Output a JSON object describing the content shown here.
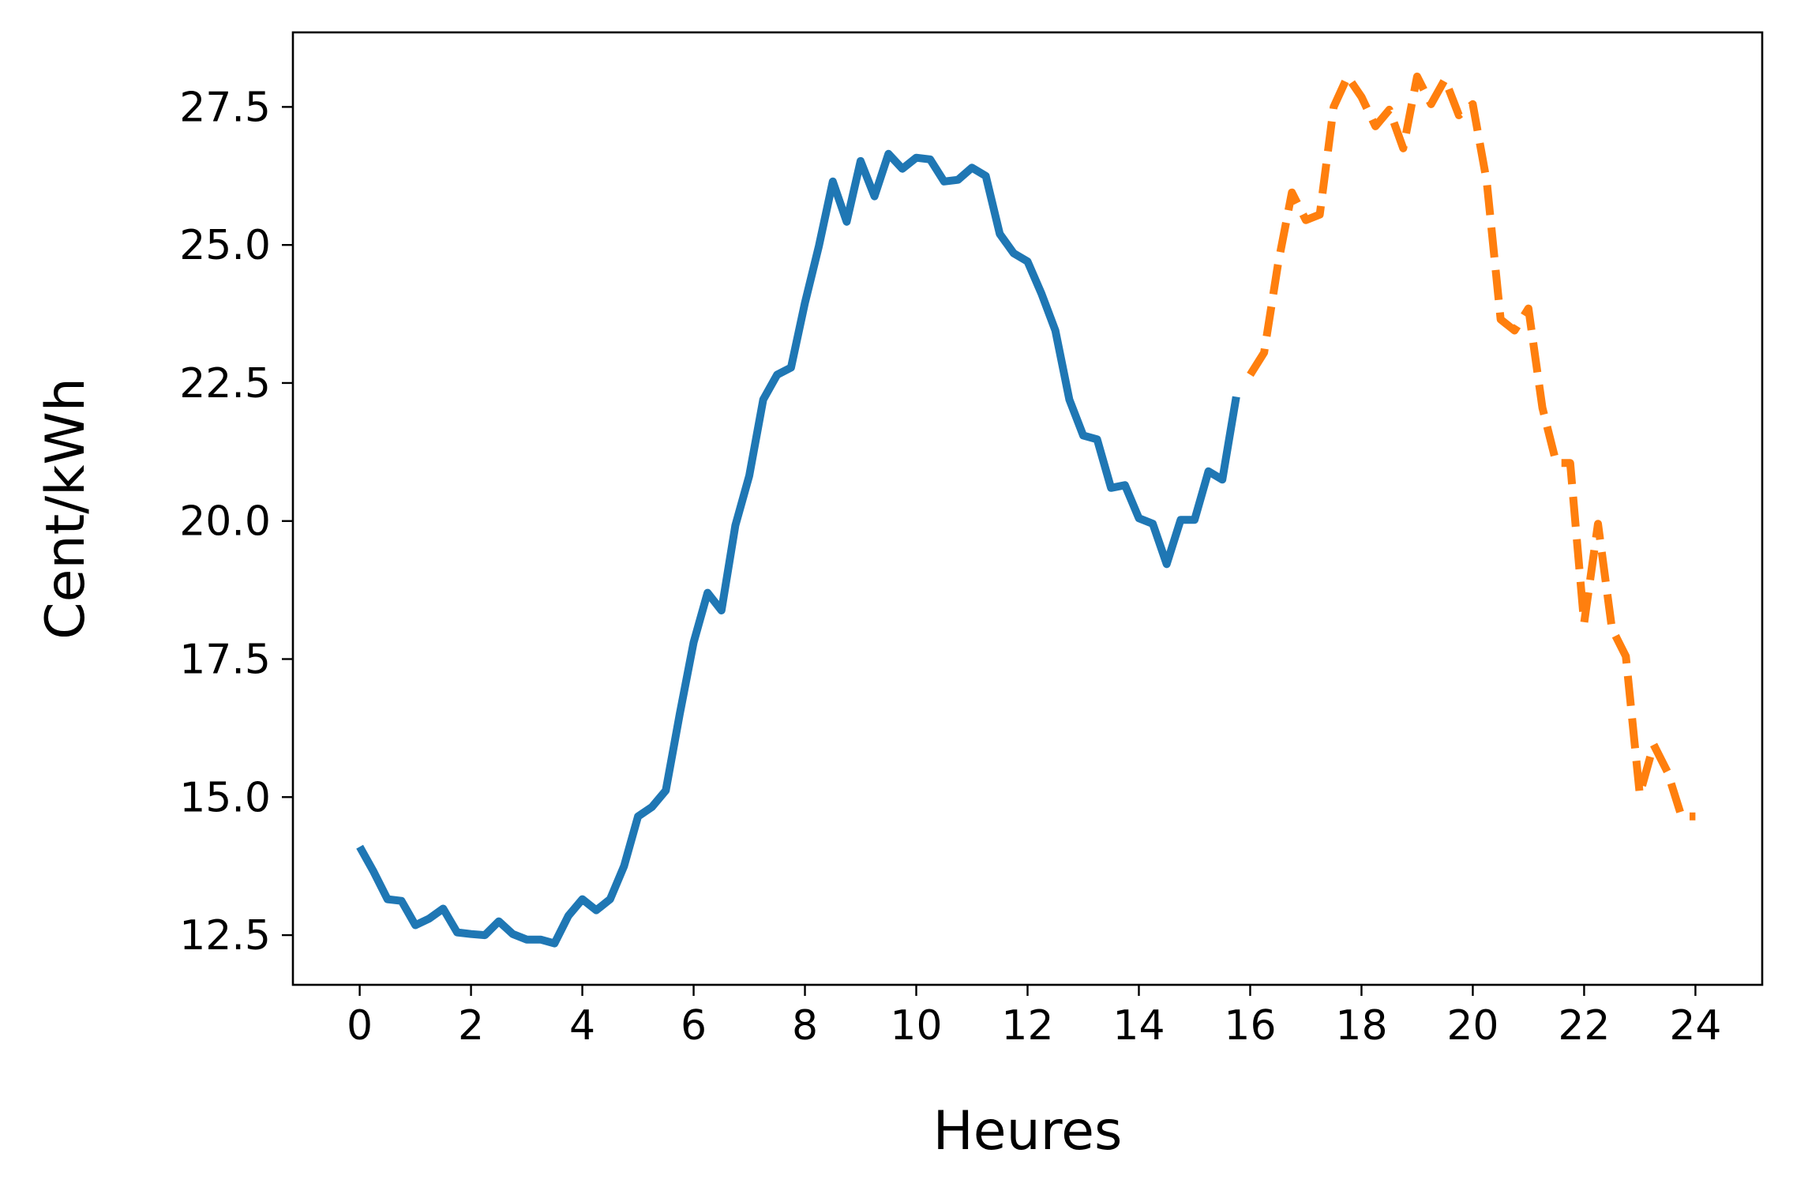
{
  "chart_data": {
    "type": "line",
    "title": "",
    "xlabel": "Heures",
    "ylabel": "Cent/kWh",
    "xlim": [
      -1.2,
      25.2
    ],
    "ylim": [
      11.6,
      28.85
    ],
    "xticks": [
      0,
      2,
      4,
      6,
      8,
      10,
      12,
      14,
      16,
      18,
      20,
      22,
      24
    ],
    "xtick_labels": [
      "0",
      "2",
      "4",
      "6",
      "8",
      "10",
      "12",
      "14",
      "16",
      "18",
      "20",
      "22",
      "24"
    ],
    "yticks": [
      12.5,
      15.0,
      17.5,
      20.0,
      22.5,
      25.0,
      27.5
    ],
    "ytick_labels": [
      "12.5",
      "15.0",
      "17.5",
      "20.0",
      "22.5",
      "25.0",
      "27.5"
    ],
    "grid": false,
    "legend": false,
    "series": [
      {
        "style": "solid",
        "color": "#1f77b4",
        "x": [
          0,
          0.25,
          0.5,
          0.75,
          1.0,
          1.25,
          1.5,
          1.75,
          2.0,
          2.25,
          2.5,
          2.75,
          3.0,
          3.25,
          3.5,
          3.75,
          4.0,
          4.25,
          4.5,
          4.75,
          5.0,
          5.25,
          5.5,
          5.75,
          6.0,
          6.25,
          6.5,
          6.75,
          7.0,
          7.25,
          7.5,
          7.75,
          8.0,
          8.25,
          8.5,
          8.75,
          9.0,
          9.25,
          9.5,
          9.75,
          10.0,
          10.25,
          10.5,
          10.75,
          11.0,
          11.25,
          11.5,
          11.75,
          12.0,
          12.25,
          12.5,
          12.75,
          13.0,
          13.25,
          13.5,
          13.75,
          14.0,
          14.25,
          14.5,
          14.75,
          15.0,
          15.25,
          15.5,
          15.75
        ],
        "y": [
          14.1,
          13.65,
          13.15,
          13.12,
          12.68,
          12.8,
          12.98,
          12.55,
          12.52,
          12.5,
          12.75,
          12.52,
          12.42,
          12.42,
          12.35,
          12.85,
          13.15,
          12.95,
          13.15,
          13.75,
          14.65,
          14.82,
          15.12,
          16.5,
          17.8,
          18.7,
          18.38,
          19.92,
          20.82,
          22.2,
          22.65,
          22.78,
          23.95,
          24.98,
          26.15,
          25.42,
          26.52,
          25.88,
          26.65,
          26.38,
          26.58,
          26.55,
          26.15,
          26.18,
          26.4,
          26.25,
          25.2,
          24.85,
          24.7,
          24.12,
          23.45,
          22.2,
          21.55,
          21.48,
          20.6,
          20.65,
          20.05,
          19.95,
          19.22,
          20.02,
          20.02,
          20.9,
          20.75,
          22.25
        ]
      },
      {
        "style": "dashed",
        "color": "#ff7f0e",
        "x": [
          16.0,
          16.25,
          16.5,
          16.75,
          17.0,
          17.25,
          17.5,
          17.75,
          18.0,
          18.25,
          18.5,
          18.75,
          19.0,
          19.25,
          19.5,
          19.75,
          20.0,
          20.25,
          20.5,
          20.75,
          21.0,
          21.25,
          21.5,
          21.75,
          22.0,
          22.25,
          22.5,
          22.75,
          23.0,
          23.25,
          23.5,
          23.75,
          24.0
        ],
        "y": [
          22.65,
          23.05,
          24.65,
          25.95,
          25.45,
          25.55,
          27.5,
          28.05,
          27.68,
          27.15,
          27.45,
          26.75,
          28.05,
          27.55,
          28.0,
          27.35,
          27.55,
          26.15,
          23.65,
          23.45,
          23.85,
          22.05,
          21.05,
          21.05,
          18.15,
          19.95,
          18.05,
          17.55,
          15.05,
          15.95,
          15.45,
          14.65,
          14.65
        ]
      }
    ]
  }
}
